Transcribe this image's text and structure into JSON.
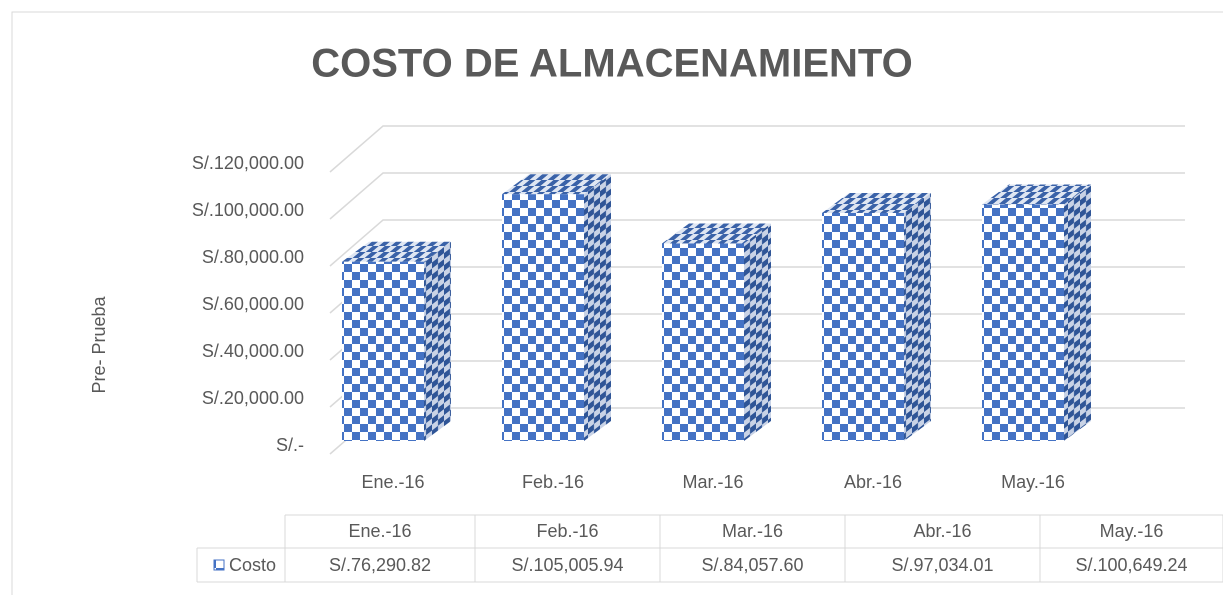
{
  "chart_data": {
    "type": "bar3d",
    "title": "COSTO DE ALMACENAMIENTO",
    "y_label": "Pre- Prueba",
    "categories": [
      "Ene.-16",
      "Feb.-16",
      "Mar.-16",
      "Abr.-16",
      "May.-16"
    ],
    "series": [
      {
        "name": "Costo",
        "color": "#4472c4",
        "values": [
          76290.82,
          105005.94,
          84057.6,
          97034.01,
          100649.24
        ],
        "value_labels": [
          "S/.76,290.82",
          "S/.105,005.94",
          "S/.84,057.60",
          "S/.97,034.01",
          "S/.100,649.24"
        ]
      }
    ],
    "ylim": [
      0,
      120000
    ],
    "yticks": [
      {
        "value": 0,
        "label": "S/.-"
      },
      {
        "value": 20000,
        "label": "S/.20,000.00"
      },
      {
        "value": 40000,
        "label": "S/.40,000.00"
      },
      {
        "value": 60000,
        "label": "S/.60,000.00"
      },
      {
        "value": 80000,
        "label": "S/.80,000.00"
      },
      {
        "value": 100000,
        "label": "S/.100,000.00"
      },
      {
        "value": 120000,
        "label": "S/.120,000.00"
      }
    ],
    "grid": true
  }
}
